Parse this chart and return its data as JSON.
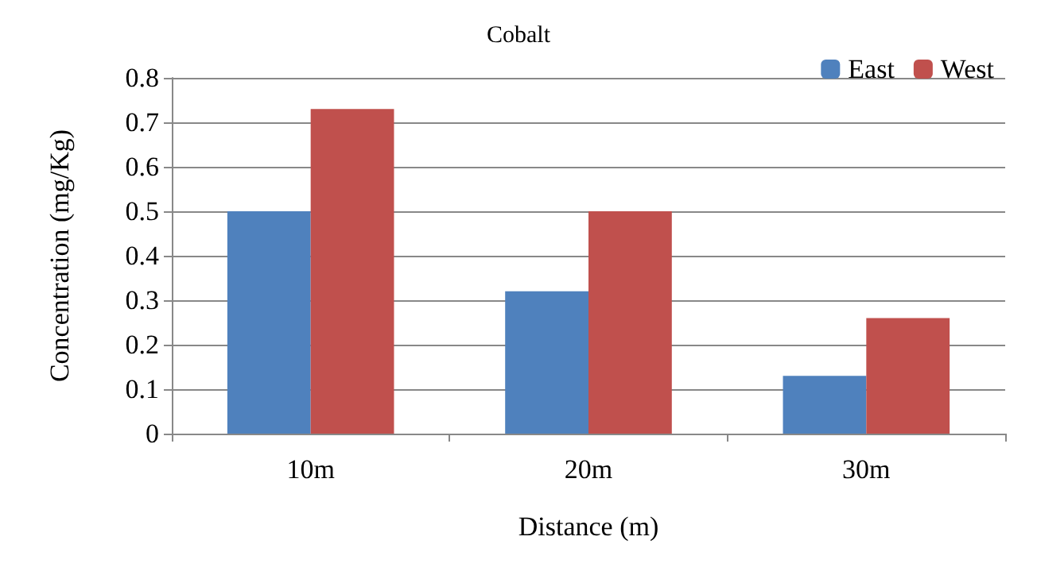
{
  "chart_data": {
    "type": "bar",
    "title": "Cobalt",
    "xlabel": "Distance (m)",
    "ylabel": "Concentration (mg/Kg)",
    "categories": [
      "10m",
      "20m",
      "30m"
    ],
    "series": [
      {
        "name": "East",
        "color": "#4f81bd",
        "values": [
          0.5,
          0.32,
          0.13
        ]
      },
      {
        "name": "West",
        "color": "#c0504d",
        "values": [
          0.73,
          0.5,
          0.26
        ]
      }
    ],
    "ylim": [
      0,
      0.8
    ],
    "yticks": [
      0,
      0.1,
      0.2,
      0.3,
      0.4,
      0.5,
      0.6,
      0.7,
      0.8
    ],
    "grid": "y",
    "legend": "top right"
  }
}
